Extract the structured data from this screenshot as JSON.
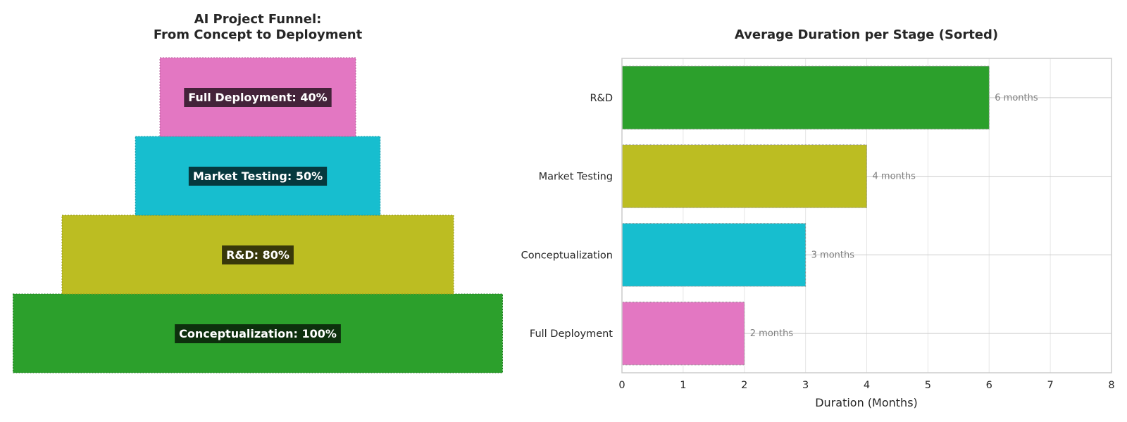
{
  "chart_data": [
    {
      "type": "funnel",
      "title_lines": [
        "AI Project Funnel:",
        "From Concept to Deployment"
      ],
      "stages": [
        {
          "name": "Conceptualization",
          "value": 100,
          "label": "Conceptualization: 100%",
          "color": "#2ca02c"
        },
        {
          "name": "R&D",
          "value": 80,
          "label": "R&D: 80%",
          "color": "#bcbd22"
        },
        {
          "name": "Market Testing",
          "value": 50,
          "label": "Market Testing: 50%",
          "color": "#17becf"
        },
        {
          "name": "Full Deployment",
          "value": 40,
          "label": "Full Deployment: 40%",
          "color": "#e377c2"
        }
      ]
    },
    {
      "type": "bar",
      "orientation": "horizontal",
      "title": "Average Duration per Stage (Sorted)",
      "xlabel": "Duration (Months)",
      "ylabel": "",
      "xlim": [
        0,
        8
      ],
      "xticks": [
        0,
        1,
        2,
        3,
        4,
        5,
        6,
        7,
        8
      ],
      "grid": true,
      "categories": [
        "R&D",
        "Market Testing",
        "Conceptualization",
        "Full Deployment"
      ],
      "values": [
        6,
        4,
        3,
        2
      ],
      "value_labels": [
        "6 months",
        "4 months",
        "3 months",
        "2 months"
      ],
      "colors": [
        "#2ca02c",
        "#bcbd22",
        "#17becf",
        "#e377c2"
      ]
    }
  ]
}
